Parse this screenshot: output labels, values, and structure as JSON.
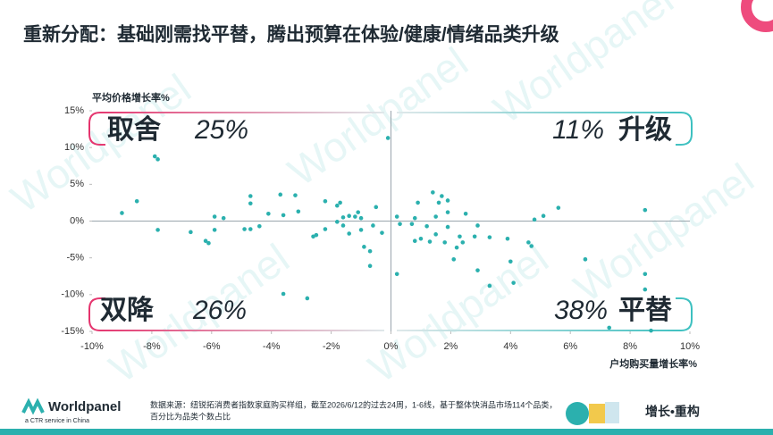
{
  "chart_data": {
    "type": "scatter",
    "title": "重新分配：基础刚需找平替，腾出预算在体验/健康/情绪品类升级",
    "y_label": "平均价格增长率%",
    "x_label": "户均购买量增长率%",
    "color": "#2bb0ae",
    "xlim": [
      -10,
      10
    ],
    "ylim": [
      -15,
      15
    ],
    "xticks": [
      {
        "value": -10,
        "label": "-10%"
      },
      {
        "value": -8,
        "label": "-8%"
      },
      {
        "value": -6,
        "label": "-6%"
      },
      {
        "value": -4,
        "label": "-4%"
      },
      {
        "value": -2,
        "label": "-2%"
      },
      {
        "value": 0,
        "label": "0%"
      },
      {
        "value": 2,
        "label": "2%"
      },
      {
        "value": 4,
        "label": "4%"
      },
      {
        "value": 6,
        "label": "6%"
      },
      {
        "value": 8,
        "label": "8%"
      },
      {
        "value": 10,
        "label": "10%"
      }
    ],
    "yticks": [
      {
        "value": -15,
        "label": "-15%"
      },
      {
        "value": -10,
        "label": "-10%"
      },
      {
        "value": -5,
        "label": "-5%"
      },
      {
        "value": 0,
        "label": "0%"
      },
      {
        "value": 5,
        "label": "5%"
      },
      {
        "value": 10,
        "label": "10%"
      },
      {
        "value": 15,
        "label": "15%"
      }
    ],
    "quadrants": [
      {
        "name": "取舍",
        "share": "25%"
      },
      {
        "name": "升级",
        "share": "11%"
      },
      {
        "name": "双降",
        "share": "26%"
      },
      {
        "name": "平替",
        "share": "38%"
      }
    ],
    "x": [
      -9.0,
      -8.5,
      -7.9,
      -7.8,
      -7.8,
      -6.7,
      -6.2,
      -6.1,
      -5.9,
      -5.6,
      -5.9,
      -4.7,
      -4.7,
      -4.9,
      -4.7,
      -4.4,
      -4.1,
      -3.7,
      -3.6,
      -3.6,
      -3.2,
      -3.1,
      -2.8,
      -2.6,
      -2.5,
      -2.2,
      -2.2,
      -1.8,
      -1.7,
      -1.8,
      -1.6,
      -1.6,
      -1.4,
      -1.4,
      -1.2,
      -1.1,
      -1.0,
      -1.0,
      -0.9,
      -0.7,
      -0.7,
      -0.6,
      -0.5,
      -0.3,
      -0.1,
      0.2,
      0.2,
      0.3,
      0.7,
      0.8,
      0.8,
      0.9,
      1.0,
      1.2,
      1.3,
      1.4,
      1.5,
      1.5,
      1.6,
      1.7,
      1.8,
      1.9,
      1.9,
      1.9,
      2.1,
      2.2,
      2.3,
      2.4,
      2.5,
      2.8,
      2.9,
      2.9,
      3.3,
      3.3,
      3.9,
      4.0,
      4.1,
      4.6,
      4.7,
      4.8,
      5.1,
      5.6,
      6.5,
      8.5,
      8.5,
      8.5,
      8.7,
      7.3
    ],
    "values": [
      1.1,
      2.7,
      8.8,
      8.4,
      -1.2,
      -1.5,
      -2.7,
      -3.0,
      0.6,
      0.4,
      -1.2,
      3.4,
      2.4,
      -1.1,
      -1.1,
      -0.7,
      1.0,
      3.6,
      0.8,
      -9.9,
      3.5,
      1.3,
      -10.5,
      -2.1,
      -1.9,
      2.7,
      -1.1,
      2.1,
      2.5,
      -0.1,
      0.5,
      -0.6,
      0.7,
      -1.7,
      0.6,
      1.2,
      0.4,
      -1.2,
      -3.5,
      -6.1,
      -4.1,
      -0.6,
      1.9,
      -1.6,
      11.3,
      0.6,
      -7.2,
      -0.4,
      -0.4,
      -2.7,
      0.4,
      2.5,
      -2.4,
      -0.7,
      -2.8,
      3.9,
      0.6,
      -1.8,
      2.5,
      3.4,
      -2.9,
      2.8,
      -0.8,
      1.2,
      -5.2,
      -3.6,
      -2.1,
      -2.9,
      1.0,
      -2.1,
      -6.7,
      -0.6,
      -2.2,
      -8.8,
      -2.4,
      -5.5,
      -8.4,
      -2.9,
      -3.4,
      0.2,
      0.7,
      1.8,
      -5.2,
      1.5,
      -7.2,
      -9.3,
      -14.9,
      -14.5
    ]
  },
  "watermark": "Worldpanel",
  "footer": {
    "source_line1": "数据来源：纽锐拓消费者指数家庭购买样组，截至2026/6/12的过去24周，1-6线，基于整体快消品市场114个品类，",
    "source_line2": "百分比为品类个数占比",
    "brand": "Worldpanel",
    "brand_sub": "a CTR service in China",
    "slogan": "增长•重构"
  }
}
